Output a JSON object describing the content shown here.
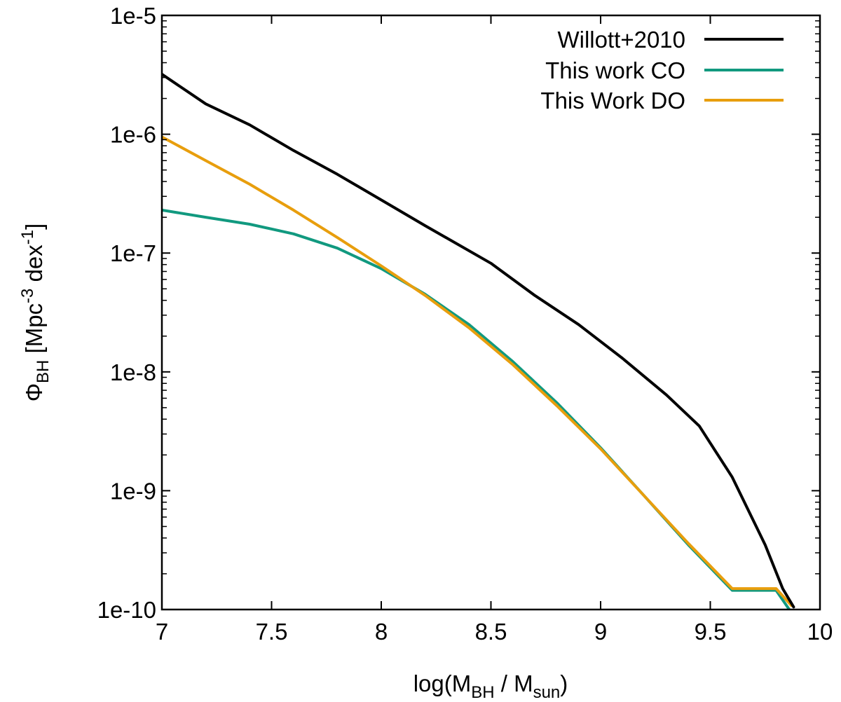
{
  "chart_data": {
    "type": "line",
    "xlabel": {
      "pre": "log(M",
      "sub1": "BH",
      "mid": " / M",
      "sub2": "sun",
      "post": ")"
    },
    "ylabel": {
      "sym": "Φ",
      "sub": "BH",
      "a": " [Mpc",
      "sup1": "-3",
      "b": " dex",
      "sup2": "-1",
      "c": "]"
    },
    "xlim": [
      7,
      10
    ],
    "ylim_log10": [
      -10,
      -5
    ],
    "y_scale": "log",
    "x_ticks": [
      7,
      7.5,
      8,
      8.5,
      9,
      9.5,
      10
    ],
    "x_tick_labels": [
      "7",
      "7.5",
      "8",
      "8.5",
      "9",
      "9.5",
      "10"
    ],
    "y_ticks_log10": [
      -10,
      -9,
      -8,
      -7,
      -6,
      -5
    ],
    "y_tick_labels": [
      "1e-10",
      "1e-9",
      "1e-8",
      "1e-7",
      "1e-6",
      "1e-5"
    ],
    "legend_position": "top-right",
    "series": [
      {
        "name": "Willott+2010",
        "color": "#000000",
        "x": [
          7.0,
          7.2,
          7.4,
          7.6,
          7.8,
          8.0,
          8.2,
          8.5,
          8.7,
          8.9,
          9.1,
          9.3,
          9.45,
          9.6,
          9.75,
          9.83,
          9.88
        ],
        "y": [
          3.2e-06,
          1.8e-06,
          1.2e-06,
          7.3e-07,
          4.6e-07,
          2.8e-07,
          1.7e-07,
          8.2e-08,
          4.4e-08,
          2.5e-08,
          1.3e-08,
          6.4e-09,
          3.5e-09,
          1.3e-09,
          3.5e-10,
          1.5e-10,
          1.05e-10
        ]
      },
      {
        "name": "This work CO",
        "color": "#11997f",
        "x": [
          7.0,
          7.2,
          7.4,
          7.6,
          7.8,
          8.0,
          8.2,
          8.4,
          8.6,
          8.8,
          9.0,
          9.2,
          9.4,
          9.6,
          9.8,
          9.86
        ],
        "y": [
          2.3e-07,
          2e-07,
          1.75e-07,
          1.45e-07,
          1.1e-07,
          7.4e-08,
          4.5e-08,
          2.5e-08,
          1.22e-08,
          5.5e-09,
          2.3e-09,
          9e-10,
          3.5e-10,
          1.45e-10,
          1.45e-10,
          1e-10
        ]
      },
      {
        "name": "This Work DO",
        "color": "#e89e0d",
        "x": [
          7.0,
          7.2,
          7.4,
          7.6,
          7.8,
          8.0,
          8.2,
          8.4,
          8.6,
          8.8,
          9.0,
          9.2,
          9.4,
          9.6,
          9.8,
          9.87
        ],
        "y": [
          9.5e-07,
          6e-07,
          3.8e-07,
          2.3e-07,
          1.35e-07,
          7.8e-08,
          4.4e-08,
          2.35e-08,
          1.15e-08,
          5.2e-09,
          2.25e-09,
          9e-10,
          3.6e-10,
          1.5e-10,
          1.5e-10,
          1.08e-10
        ]
      }
    ]
  }
}
